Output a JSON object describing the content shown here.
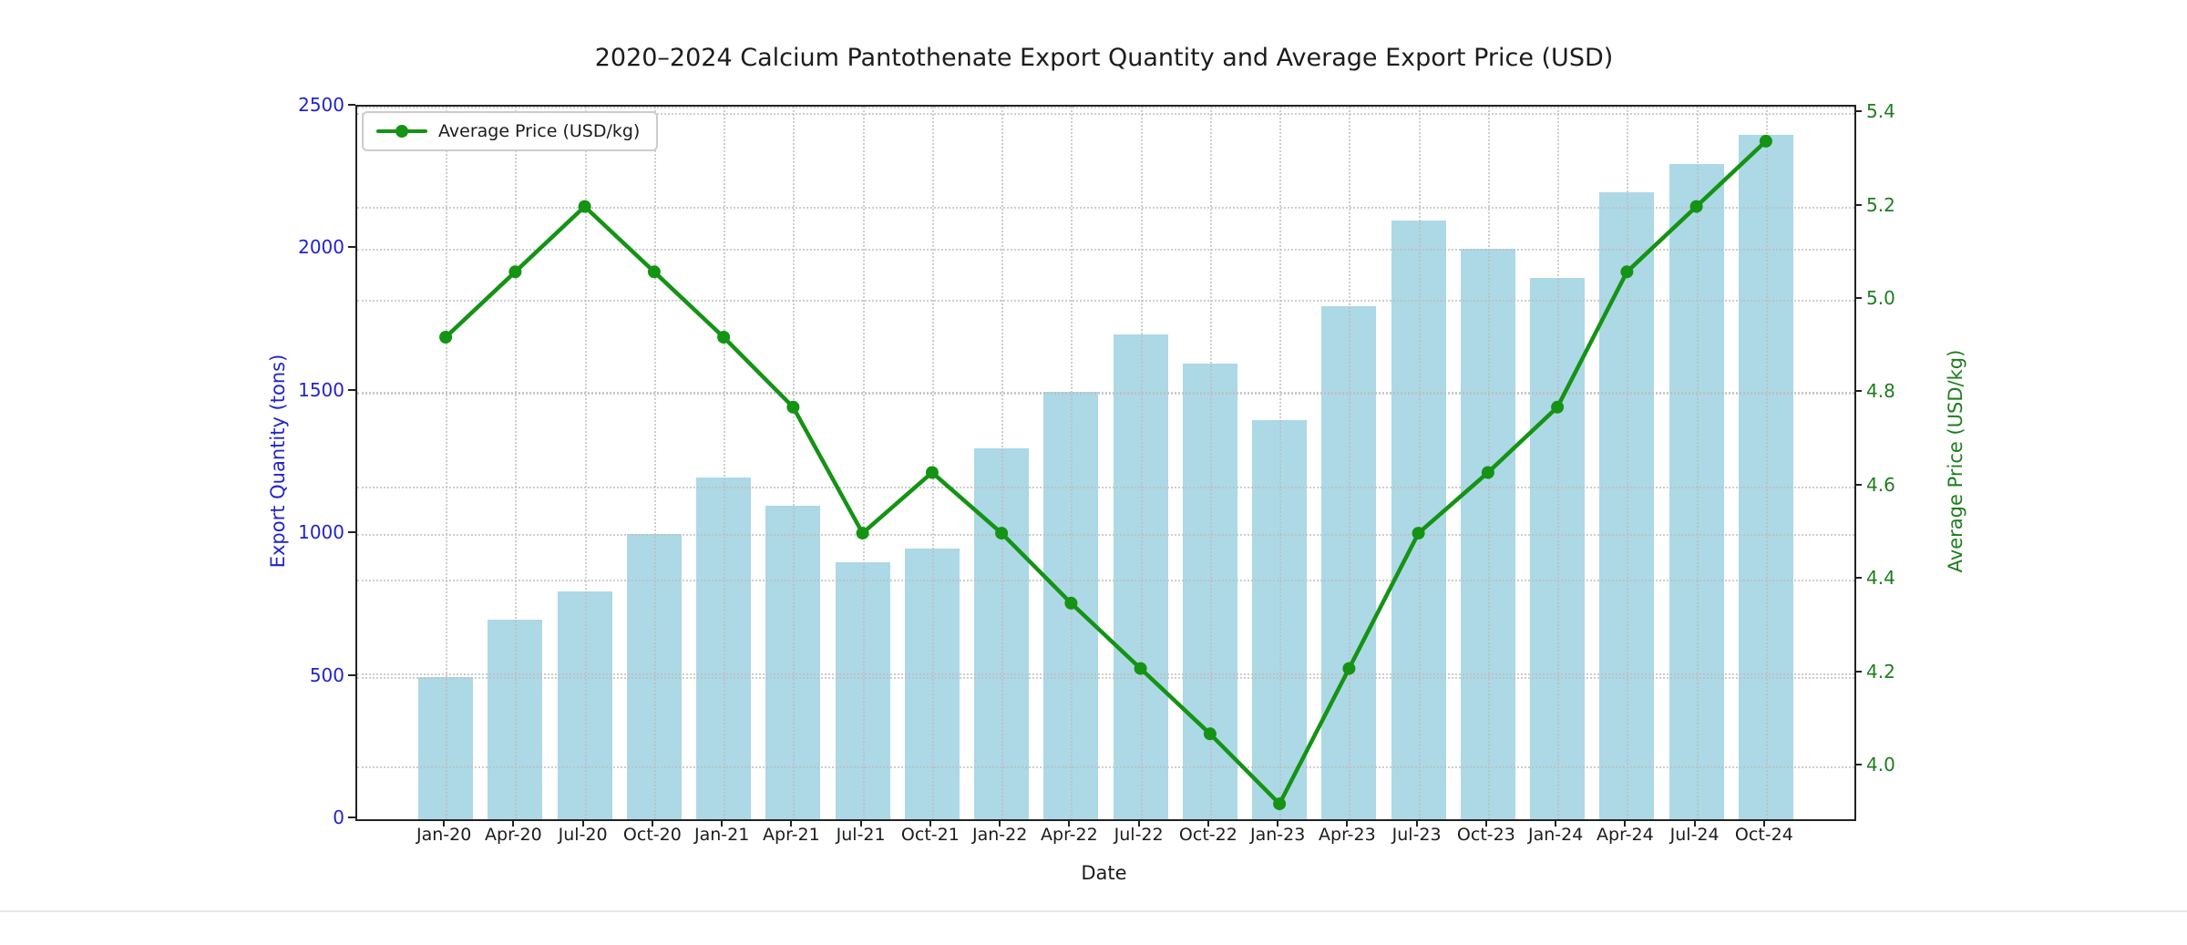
{
  "chart_data": {
    "type": "bar+line",
    "title": "2020–2024 Calcium Pantothenate Export Quantity and Average Export Price (USD)",
    "categories": [
      "Jan-20",
      "Apr-20",
      "Jul-20",
      "Oct-20",
      "Jan-21",
      "Apr-21",
      "Jul-21",
      "Oct-21",
      "Jan-22",
      "Apr-22",
      "Jul-22",
      "Oct-22",
      "Jan-23",
      "Apr-23",
      "Jul-23",
      "Oct-23",
      "Jan-24",
      "Apr-24",
      "Jul-24",
      "Oct-24"
    ],
    "series": [
      {
        "name": "Export Quantity (tons)",
        "type": "bar",
        "yaxis": "left",
        "color": "#ADD8E6",
        "values": [
          500,
          700,
          800,
          1000,
          1200,
          1100,
          900,
          950,
          1300,
          1500,
          1700,
          1600,
          1400,
          1800,
          2100,
          2000,
          1900,
          2200,
          2300,
          2400
        ]
      },
      {
        "name": "Average Price (USD/kg)",
        "type": "line",
        "yaxis": "right",
        "color": "#149314",
        "values": [
          4.92,
          5.06,
          5.2,
          5.06,
          4.92,
          4.77,
          4.5,
          4.63,
          4.5,
          4.35,
          4.21,
          4.07,
          3.92,
          4.21,
          4.5,
          4.63,
          4.77,
          5.06,
          5.2,
          5.34
        ]
      }
    ],
    "axes": {
      "left": {
        "label": "Export Quantity (tons)",
        "color": "#2323cf",
        "range": [
          0,
          2500
        ],
        "ticks": [
          0,
          500,
          1000,
          1500,
          2000,
          2500
        ]
      },
      "right": {
        "label": "Average Price (USD/kg)",
        "color": "#1e7d1e",
        "range": [
          3.887,
          5.414
        ],
        "ticks": [
          "4.0",
          "4.2",
          "4.4",
          "4.6",
          "4.8",
          "5.0",
          "5.2",
          "5.4"
        ]
      },
      "x": {
        "label": "Date"
      }
    },
    "legend": {
      "position": "upper-left",
      "entries": [
        {
          "label": "Average Price (USD/kg)",
          "color": "#149314"
        }
      ]
    },
    "grid": {
      "visible": true,
      "style": "dotted"
    }
  }
}
